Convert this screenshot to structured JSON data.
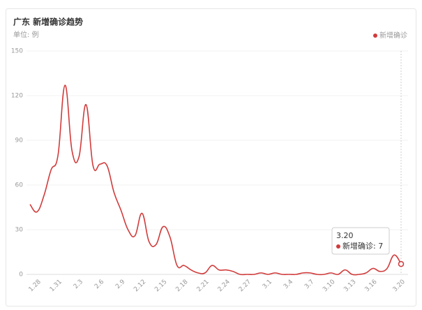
{
  "chart_data": {
    "type": "line",
    "title": "广东 新增确诊趋势",
    "subtitle": "单位: 例",
    "categories": [
      null,
      "1.28",
      null,
      null,
      "1.31",
      null,
      null,
      "2.3",
      null,
      null,
      "2.6",
      null,
      null,
      "2.9",
      null,
      null,
      "2.12",
      null,
      null,
      "2.15",
      null,
      null,
      "2.18",
      null,
      null,
      "2.21",
      null,
      null,
      "2.24",
      null,
      null,
      "2.27",
      null,
      null,
      "3.1",
      null,
      null,
      "3.4",
      null,
      null,
      "3.7",
      null,
      null,
      "3.10",
      null,
      null,
      "3.13",
      null,
      null,
      "3.16",
      null,
      null,
      null,
      "3.20"
    ],
    "series": [
      {
        "name": "新增确诊",
        "color": "#d13b3b",
        "values": [
          47,
          42,
          53,
          70,
          80,
          127,
          83,
          79,
          114,
          73,
          74,
          73,
          55,
          43,
          30,
          26,
          41,
          22,
          20,
          32,
          25,
          6,
          6,
          3,
          1,
          1,
          6,
          3,
          3,
          2,
          0,
          0,
          0,
          1,
          0,
          1,
          0,
          0,
          0,
          1,
          1,
          0,
          0,
          1,
          0,
          3,
          0,
          0,
          1,
          4,
          2,
          4,
          13,
          7
        ]
      }
    ],
    "ylim": [
      0,
      150
    ],
    "yticks": [
      0,
      30,
      60,
      90,
      120,
      150
    ],
    "grid": true,
    "legend": "top-right"
  }
}
